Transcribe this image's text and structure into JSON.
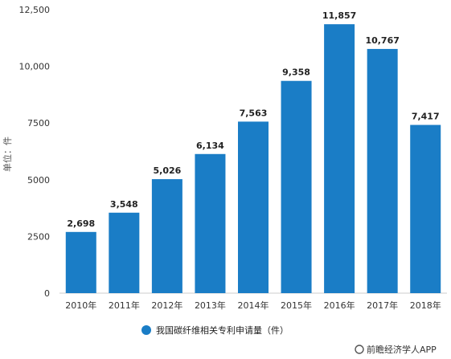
{
  "chart_data": {
    "type": "bar",
    "categories": [
      "2010年",
      "2011年",
      "2012年",
      "2013年",
      "2014年",
      "2015年",
      "2016年",
      "2017年",
      "2018年"
    ],
    "values": [
      2698,
      3548,
      5026,
      6134,
      7563,
      9358,
      11857,
      10767,
      7417
    ],
    "data_labels": [
      "2,698",
      "3,548",
      "5,026",
      "6,134",
      "7,563",
      "9,358",
      "11,857",
      "10,767",
      "7,417"
    ],
    "ylabel": "单位：件",
    "ylim": [
      0,
      12500
    ],
    "yticks": [
      0,
      2500,
      5000,
      7500,
      10000,
      12500
    ],
    "ytick_labels": [
      "0",
      "2500",
      "5000",
      "7500",
      "10,000",
      "12,500"
    ],
    "legend": {
      "label": "我国碳纤维相关专利申请量（件）",
      "position": "bottom-center"
    },
    "grid": false,
    "bar_color": "#1a7dc6"
  },
  "source": "前瞻经济学人APP"
}
